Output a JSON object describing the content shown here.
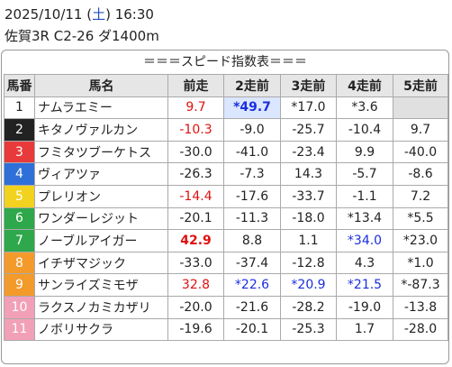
{
  "header": {
    "date_line": [
      "2025/10/11 (",
      "土",
      ") 16:30"
    ],
    "race": "佐賀3R C2-26 ダ1400m"
  },
  "table": {
    "title": "＝＝＝スピード指数表＝＝＝",
    "columns": [
      "馬番",
      "馬名",
      "前走",
      "2走前",
      "3走前",
      "4走前",
      "5走前"
    ],
    "rows": [
      [
        "1",
        "ナムラエミー",
        "9.7",
        "*49.7",
        "*17.0",
        "*3.6",
        null
      ],
      [
        "2",
        "キタノヴァルカン",
        "-10.3",
        "-9.0",
        "-25.7",
        "-10.4",
        "9.7"
      ],
      [
        "3",
        "フミタツブーケトス",
        "-30.0",
        "-41.0",
        "-23.4",
        "9.9",
        "-40.0"
      ],
      [
        "4",
        "ヴィアツァ",
        "-26.3",
        "-7.3",
        "14.3",
        "-5.7",
        "-8.6"
      ],
      [
        "5",
        "プレリオン",
        "-14.4",
        "-17.6",
        "-33.7",
        "-1.1",
        "7.2"
      ],
      [
        "6",
        "ワンダーレジット",
        "-20.1",
        "-11.3",
        "-18.0",
        "*13.4",
        "*5.5"
      ],
      [
        "7",
        "ノーブルアイガー",
        "42.9",
        "8.8",
        "1.1",
        "*34.0",
        "*23.0"
      ],
      [
        "8",
        "イチザマジック",
        "-33.0",
        "-37.4",
        "-12.8",
        "4.3",
        "*1.0"
      ],
      [
        "9",
        "サンライズミモザ",
        "32.8",
        "*22.6",
        "*20.9",
        "*21.5",
        "*-87.3"
      ],
      [
        "10",
        "ラクスノカミカザリ",
        "-20.0",
        "-21.6",
        "-28.2",
        "-19.0",
        "-13.8"
      ],
      [
        "11",
        "ノボリサクラ",
        "-19.6",
        "-20.1",
        "-25.3",
        "1.7",
        "-28.0"
      ]
    ]
  }
}
